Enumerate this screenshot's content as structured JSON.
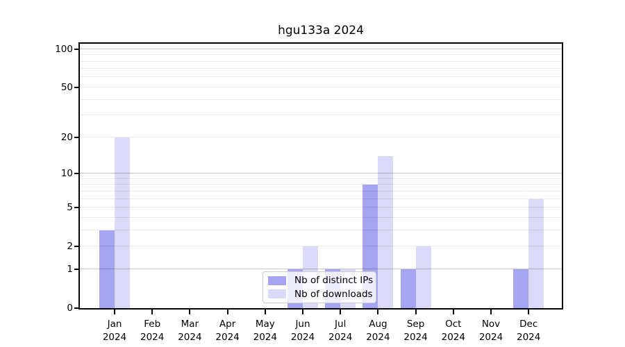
{
  "title": "hgu133a 2024",
  "chart_data": {
    "type": "bar",
    "title": "hgu133a 2024",
    "scale": "log1p",
    "categories": [
      "Jan",
      "Feb",
      "Mar",
      "Apr",
      "May",
      "Jun",
      "Jul",
      "Aug",
      "Sep",
      "Oct",
      "Nov",
      "Dec"
    ],
    "year": "2024",
    "series": [
      {
        "name": "Nb of distinct IPs",
        "color": "#a5a5f2",
        "values": [
          3,
          0,
          0,
          0,
          0,
          1,
          1,
          8,
          1,
          0,
          0,
          1
        ]
      },
      {
        "name": "Nb of downloads",
        "color": "#dadaf8",
        "values": [
          20,
          0,
          0,
          0,
          0,
          2,
          1,
          14,
          2,
          0,
          0,
          6
        ]
      }
    ],
    "xlabel": "",
    "ylabel": "",
    "yticks": [
      0,
      1,
      2,
      5,
      10,
      20,
      50,
      100
    ],
    "major_gridlines": [
      1,
      10,
      100
    ],
    "minor_gridlines": [
      2,
      3,
      4,
      5,
      6,
      7,
      8,
      9,
      20,
      30,
      40,
      50,
      60,
      70,
      80,
      90
    ],
    "ylim": [
      0,
      110
    ],
    "grid": "horizontal",
    "legend_position": "bottom-center"
  },
  "legend": {
    "items": [
      {
        "label": "Nb of distinct IPs"
      },
      {
        "label": "Nb of downloads"
      }
    ]
  }
}
